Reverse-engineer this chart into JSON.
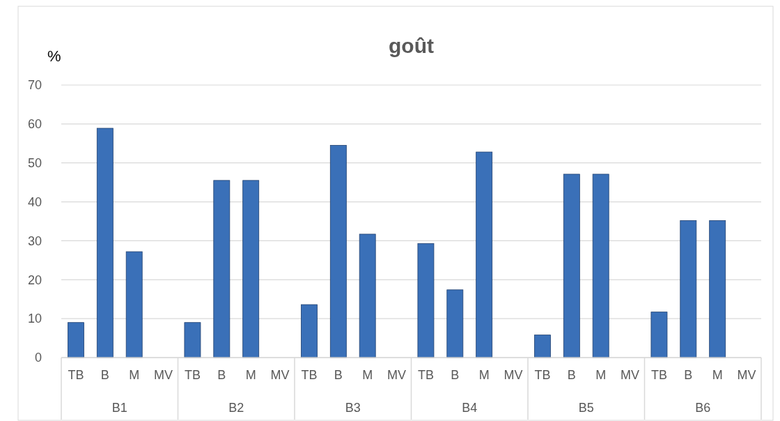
{
  "chart_data": {
    "type": "bar",
    "title": "goût",
    "ylabel": "%",
    "categories": [
      "TB",
      "B",
      "M",
      "MV",
      "TB",
      "B",
      "M",
      "MV",
      "TB",
      "B",
      "M",
      "MV",
      "TB",
      "B",
      "M",
      "MV",
      "TB",
      "B",
      "M",
      "MV",
      "TB",
      "B",
      "M",
      "MV"
    ],
    "values": [
      9,
      58.9,
      27.2,
      0,
      9,
      45.5,
      45.5,
      0,
      13.6,
      54.5,
      31.7,
      0,
      29.3,
      17.4,
      52.8,
      0,
      5.8,
      47.1,
      47.1,
      0,
      11.7,
      35.2,
      35.2,
      0
    ],
    "color": "#3a70b8",
    "annotations": [
      "B1",
      "B2",
      "B3",
      "B4",
      "B5",
      "B6"
    ],
    "ylim": [
      0,
      70
    ],
    "yticks": [
      0,
      10,
      20,
      30,
      40,
      50,
      60,
      70
    ],
    "grid": "y"
  }
}
